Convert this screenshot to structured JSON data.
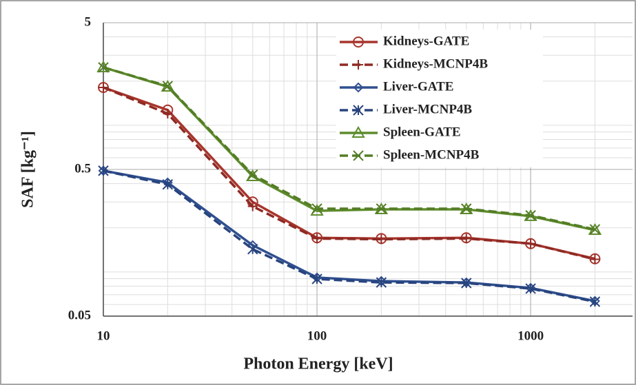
{
  "chart_data": {
    "type": "line",
    "x_label": "Photon Energy [keV]",
    "y_label": "SAF [kg⁻¹]",
    "x_log": true,
    "y_log": true,
    "grid": true,
    "legend": "top-right",
    "x": [
      10,
      20,
      50,
      100,
      200,
      500,
      1000,
      2000
    ],
    "xlim": [
      10,
      3000
    ],
    "xticks": [
      10,
      100,
      1000
    ],
    "ylim": [
      0.05,
      5
    ],
    "yticks": [
      0.05,
      0.5,
      5
    ],
    "series": [
      {
        "name": "Kidneys-GATE",
        "color": "#a8352c",
        "dash": false,
        "marker": "circle",
        "values": [
          1.81,
          1.27,
          0.3,
          0.171,
          0.169,
          0.171,
          0.156,
          0.123
        ]
      },
      {
        "name": "Kidneys-MCNP4B",
        "color": "#8e2a24",
        "dash": true,
        "marker": "plus",
        "values": [
          1.81,
          1.2,
          0.28,
          0.169,
          0.167,
          0.169,
          0.156,
          0.122
        ]
      },
      {
        "name": "Liver-GATE",
        "color": "#2f4f8f",
        "dash": false,
        "marker": "diamond",
        "values": [
          0.49,
          0.407,
          0.152,
          0.0916,
          0.0867,
          0.0848,
          0.0778,
          0.0634
        ]
      },
      {
        "name": "Liver-MCNP4B",
        "color": "#28447e",
        "dash": true,
        "marker": "asterisk",
        "values": [
          0.49,
          0.395,
          0.143,
          0.0896,
          0.0848,
          0.084,
          0.077,
          0.0627
        ]
      },
      {
        "name": "Spleen-GATE",
        "color": "#5e8c2c",
        "dash": false,
        "marker": "triangle",
        "values": [
          2.48,
          1.83,
          0.449,
          0.261,
          0.267,
          0.267,
          0.24,
          0.193
        ]
      },
      {
        "name": "Spleen-MCNP4B",
        "color": "#547d26",
        "dash": true,
        "marker": "x",
        "values": [
          2.48,
          1.85,
          0.46,
          0.27,
          0.27,
          0.27,
          0.243,
          0.195
        ]
      }
    ]
  }
}
